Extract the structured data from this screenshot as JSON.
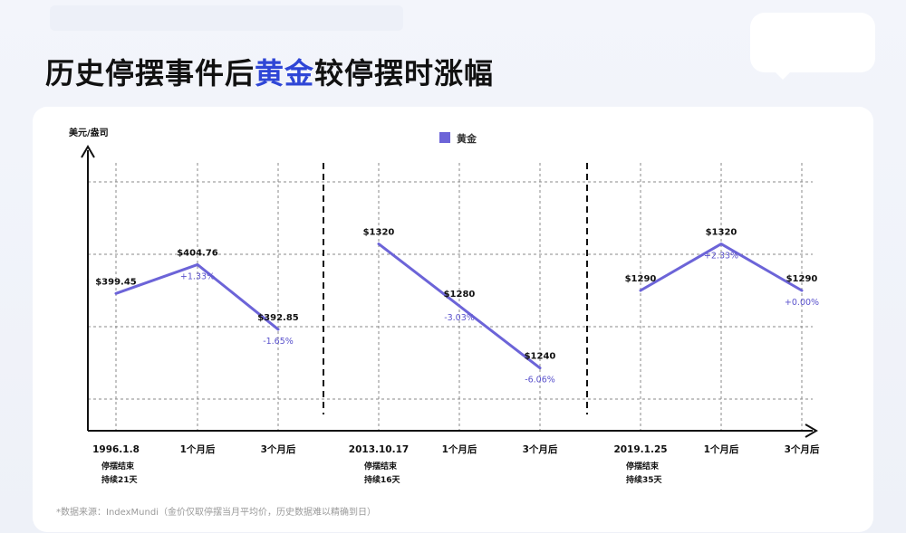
{
  "page": {
    "title_part1": "历史停摆事件后",
    "title_highlight": "黄金",
    "title_part2": "较停摆时涨幅",
    "footnote": "*数据来源：IndexMundi（金价仅取停摆当月平均价，历史数据难以精确到日）"
  },
  "colors": {
    "line": "#6c64d8",
    "pct": "#5a52cc",
    "title_highlight": "#2f46d6"
  },
  "chart_data": {
    "type": "line",
    "ylabel": "美元/盎司",
    "legend": {
      "label": "黄金",
      "position": "top-center"
    },
    "ylim": [
      1220,
      1360
    ],
    "grid": true,
    "groups": [
      {
        "categories": [
          "1996.1.8",
          "1个月后",
          "3个月后"
        ],
        "sublabel_lines": [
          "停摆结束",
          "持续21天"
        ],
        "values": [
          399.45,
          404.76,
          392.85
        ],
        "value_labels": [
          "$399.45",
          "$404.76",
          "$392.85"
        ],
        "pct_labels": [
          "",
          "+1.33%",
          "-1.65%"
        ]
      },
      {
        "categories": [
          "2013.10.17",
          "1个月后",
          "3个月后"
        ],
        "sublabel_lines": [
          "停摆结束",
          "持续16天"
        ],
        "values": [
          1320,
          1280,
          1240
        ],
        "value_labels": [
          "$1320",
          "$1280",
          "$1240"
        ],
        "pct_labels": [
          "",
          "-3.03%",
          "-6.06%"
        ]
      },
      {
        "categories": [
          "2019.1.25",
          "1个月后",
          "3个月后"
        ],
        "sublabel_lines": [
          "停摆结束",
          "持续35天"
        ],
        "values": [
          1290,
          1320,
          1290
        ],
        "value_labels": [
          "$1290",
          "$1320",
          "$1290"
        ],
        "pct_labels": [
          "",
          "+2.33%",
          "+0.00%"
        ]
      }
    ]
  }
}
